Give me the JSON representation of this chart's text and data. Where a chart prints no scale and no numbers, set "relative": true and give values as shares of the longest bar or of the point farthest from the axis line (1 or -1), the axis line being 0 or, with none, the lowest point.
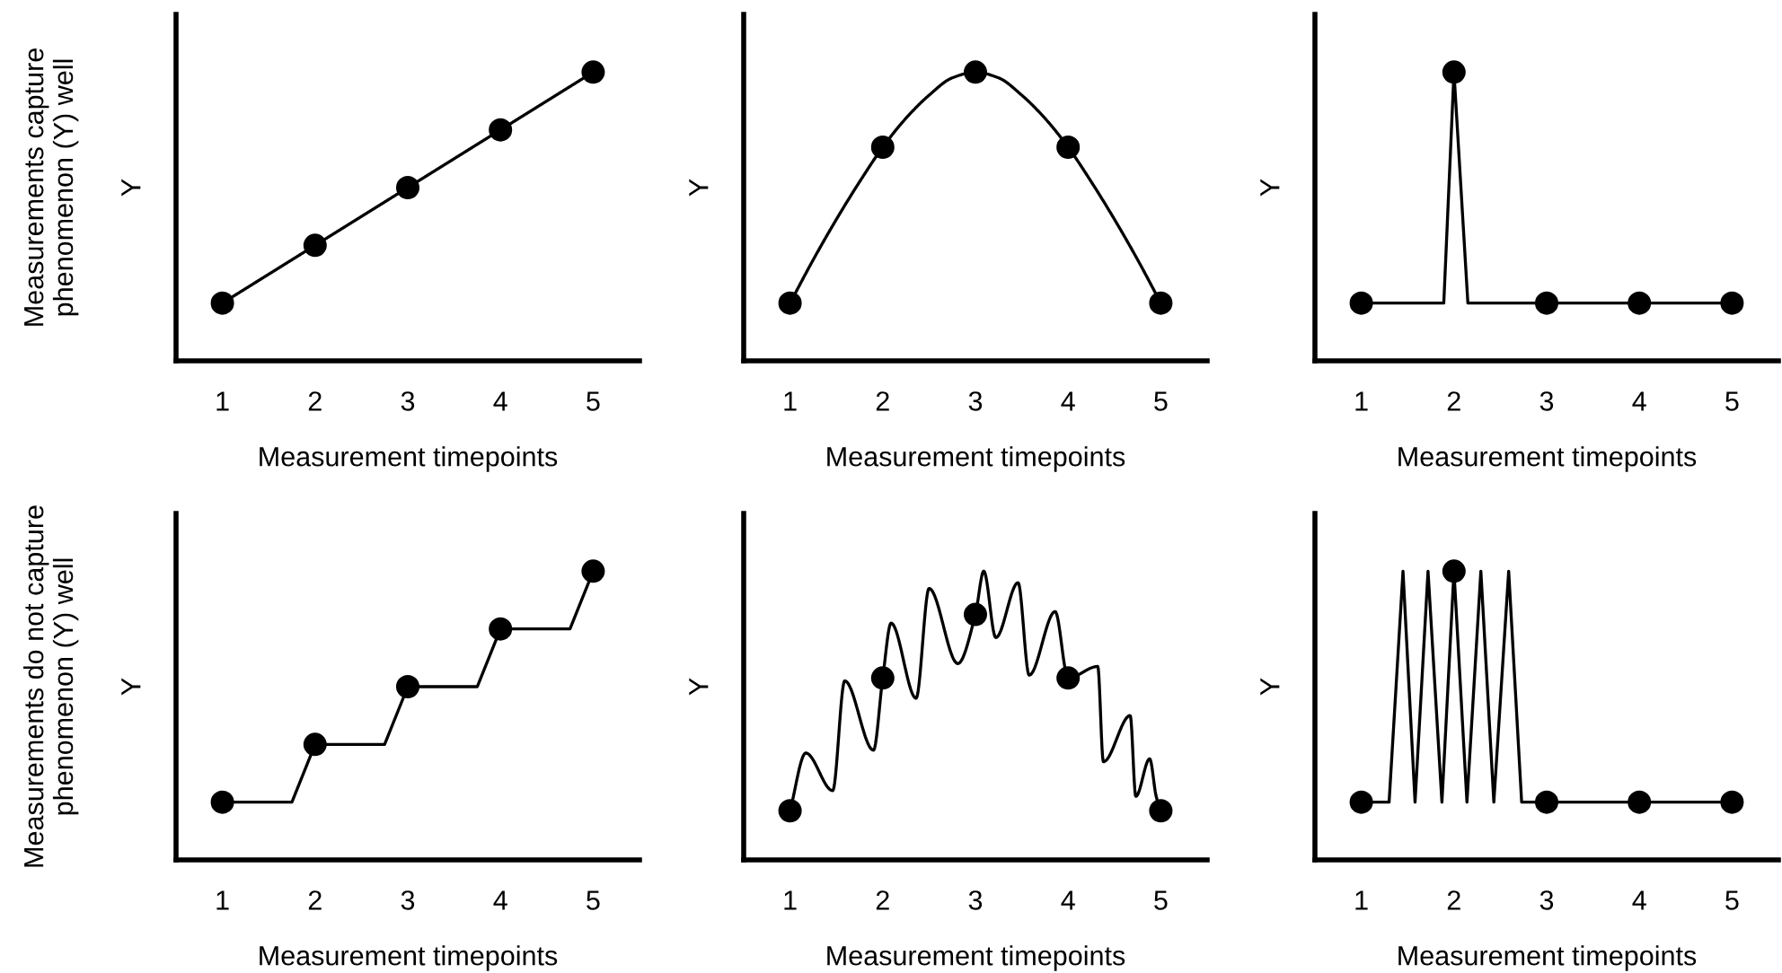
{
  "chart_data": [
    {
      "type": "line",
      "relative": true,
      "xlabel": "Measurement timepoints",
      "ylabel": "Y",
      "xlim": [
        0.5,
        5.5
      ],
      "xticks": [
        1,
        2,
        3,
        4,
        5
      ],
      "tick_labels": "x",
      "annotations": [
        "Measurements capture\nphenomenon (Y) well"
      ],
      "series": [
        {
          "color": "#000000",
          "marker": "none",
          "x": [
            1,
            2,
            3,
            4,
            5
          ],
          "values": [
            0.2,
            0.4,
            0.6,
            0.8,
            1.0
          ]
        },
        {
          "type": "scatter",
          "color": "#000000",
          "marker": "circle",
          "x": [
            1,
            2,
            3,
            4,
            5
          ],
          "values": [
            0.2,
            0.4,
            0.6,
            0.8,
            1.0
          ]
        }
      ]
    },
    {
      "type": "line",
      "relative": true,
      "xlabel": "Measurement timepoints",
      "ylabel": "Y",
      "xlim": [
        0.5,
        5.5
      ],
      "xticks": [
        1,
        2,
        3,
        4,
        5
      ],
      "tick_labels": "x",
      "series": [
        {
          "color": "#000000",
          "marker": "none",
          "x": [
            1,
            1.25,
            1.5,
            1.75,
            2,
            2.25,
            2.5,
            2.75,
            3,
            3.25,
            3.5,
            3.75,
            4,
            4.25,
            4.5,
            4.75,
            5
          ],
          "values": [
            0.2,
            0.35,
            0.49,
            0.62,
            0.74,
            0.84,
            0.92,
            0.98,
            1.0,
            0.98,
            0.92,
            0.84,
            0.74,
            0.62,
            0.49,
            0.35,
            0.2
          ]
        },
        {
          "type": "scatter",
          "color": "#000000",
          "marker": "circle",
          "x": [
            1,
            2,
            3,
            4,
            5
          ],
          "values": [
            0.2,
            0.74,
            1.0,
            0.74,
            0.2
          ]
        }
      ]
    },
    {
      "type": "line",
      "relative": true,
      "xlabel": "Measurement timepoints",
      "ylabel": "Y",
      "xlim": [
        0.5,
        5.5
      ],
      "xticks": [
        1,
        2,
        3,
        4,
        5
      ],
      "tick_labels": "x",
      "series": [
        {
          "color": "#000000",
          "marker": "none",
          "x": [
            1,
            1.89,
            2,
            2.15,
            3,
            4,
            5
          ],
          "values": [
            0.2,
            0.2,
            1.0,
            0.2,
            0.2,
            0.2,
            0.2
          ]
        },
        {
          "type": "scatter",
          "color": "#000000",
          "marker": "circle",
          "x": [
            1,
            2,
            3,
            4,
            5
          ],
          "values": [
            0.2,
            1.0,
            0.2,
            0.2,
            0.2
          ]
        }
      ]
    },
    {
      "type": "line",
      "relative": true,
      "xlabel": "Measurement timepoints",
      "ylabel": "Y",
      "xlim": [
        0.5,
        5.5
      ],
      "xticks": [
        1,
        2,
        3,
        4,
        5
      ],
      "tick_labels": "x",
      "annotations": [
        "Measurements do not capture\nphenomenon (Y) well"
      ],
      "series": [
        {
          "color": "#000000",
          "marker": "none",
          "x": [
            1,
            1.75,
            2,
            2.75,
            3,
            3.75,
            4,
            4.75,
            5
          ],
          "values": [
            0.2,
            0.2,
            0.4,
            0.4,
            0.6,
            0.6,
            0.8,
            0.8,
            1.0
          ]
        },
        {
          "type": "scatter",
          "color": "#000000",
          "marker": "circle",
          "x": [
            1,
            2,
            3,
            4,
            5
          ],
          "values": [
            0.2,
            0.4,
            0.6,
            0.8,
            1.0
          ]
        }
      ]
    },
    {
      "type": "line",
      "relative": true,
      "xlabel": "Measurement timepoints",
      "ylabel": "Y",
      "xlim": [
        0.5,
        5.5
      ],
      "xticks": [
        1,
        2,
        3,
        4,
        5
      ],
      "tick_labels": "x",
      "series": [
        {
          "color": "#000000",
          "marker": "none",
          "x": [
            1,
            1.17,
            1.46,
            1.59,
            1.9,
            2,
            2.09,
            2.36,
            2.5,
            2.81,
            3,
            3.09,
            3.22,
            3.46,
            3.58,
            3.86,
            4,
            4.32,
            4.38,
            4.67,
            4.73,
            4.88,
            4.95,
            5
          ],
          "values": [
            0.17,
            0.37,
            0.24,
            0.62,
            0.38,
            0.63,
            0.82,
            0.56,
            0.94,
            0.68,
            0.85,
            1.0,
            0.77,
            0.96,
            0.64,
            0.86,
            0.63,
            0.67,
            0.34,
            0.5,
            0.22,
            0.35,
            0.22,
            0.17
          ]
        },
        {
          "type": "scatter",
          "color": "#000000",
          "marker": "circle",
          "x": [
            1,
            2,
            3,
            4,
            5
          ],
          "values": [
            0.17,
            0.63,
            0.85,
            0.63,
            0.17
          ]
        }
      ]
    },
    {
      "type": "line",
      "relative": true,
      "xlabel": "Measurement timepoints",
      "ylabel": "Y",
      "xlim": [
        0.5,
        5.5
      ],
      "xticks": [
        1,
        2,
        3,
        4,
        5
      ],
      "tick_labels": "x",
      "series": [
        {
          "color": "#000000",
          "marker": "none",
          "x": [
            1,
            1.3,
            1.45,
            1.58,
            1.72,
            1.87,
            2,
            2.14,
            2.29,
            2.43,
            2.59,
            2.73,
            3,
            4,
            5
          ],
          "values": [
            0.2,
            0.2,
            1.0,
            0.2,
            1.0,
            0.2,
            1.0,
            0.2,
            1.0,
            0.2,
            1.0,
            0.2,
            0.2,
            0.2,
            0.2
          ]
        },
        {
          "type": "scatter",
          "color": "#000000",
          "marker": "circle",
          "x": [
            1,
            2,
            3,
            4,
            5
          ],
          "values": [
            0.2,
            1.0,
            0.2,
            0.2,
            0.2
          ]
        }
      ]
    }
  ]
}
